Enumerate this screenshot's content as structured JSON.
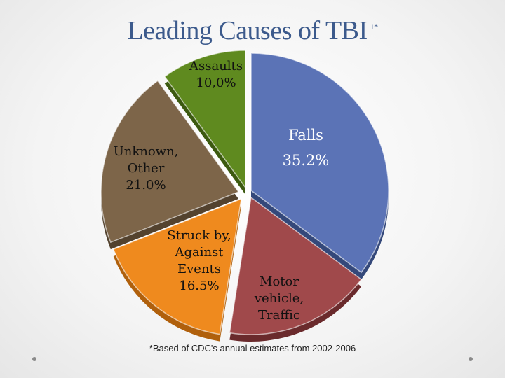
{
  "slide": {
    "title": "Leading Causes of TBI",
    "title_superscript": "1*",
    "footnote": "*Based of CDC's annual estimates from 2002-2006"
  },
  "chart_data": {
    "type": "pie",
    "title": "Leading Causes of TBI",
    "slices": [
      {
        "name": "Falls",
        "value": 35.2,
        "label_lines": [
          "Falls",
          "35.2%"
        ],
        "color": "#5b73b6",
        "side": "#34487a"
      },
      {
        "name": "Motor vehicle, Traffic",
        "value": 17.3,
        "label_lines": [
          "Motor",
          "vehicle,",
          "Traffic"
        ],
        "color": "#a0494b",
        "side": "#6a2a2c"
      },
      {
        "name": "Struck by, Against Events",
        "value": 16.5,
        "label_lines": [
          "Struck by,",
          "Against",
          "Events",
          "16.5%"
        ],
        "color": "#ef8a1e",
        "side": "#b0600c"
      },
      {
        "name": "Unknown, Other",
        "value": 21.0,
        "label_lines": [
          "Unknown,",
          "Other",
          "21.0%"
        ],
        "color": "#7d6549",
        "side": "#53422e"
      },
      {
        "name": "Assaults",
        "value": 10.0,
        "label_lines": [
          "Assaults",
          "10,0%"
        ],
        "color": "#5f8a1f",
        "side": "#3c5a10"
      }
    ]
  }
}
